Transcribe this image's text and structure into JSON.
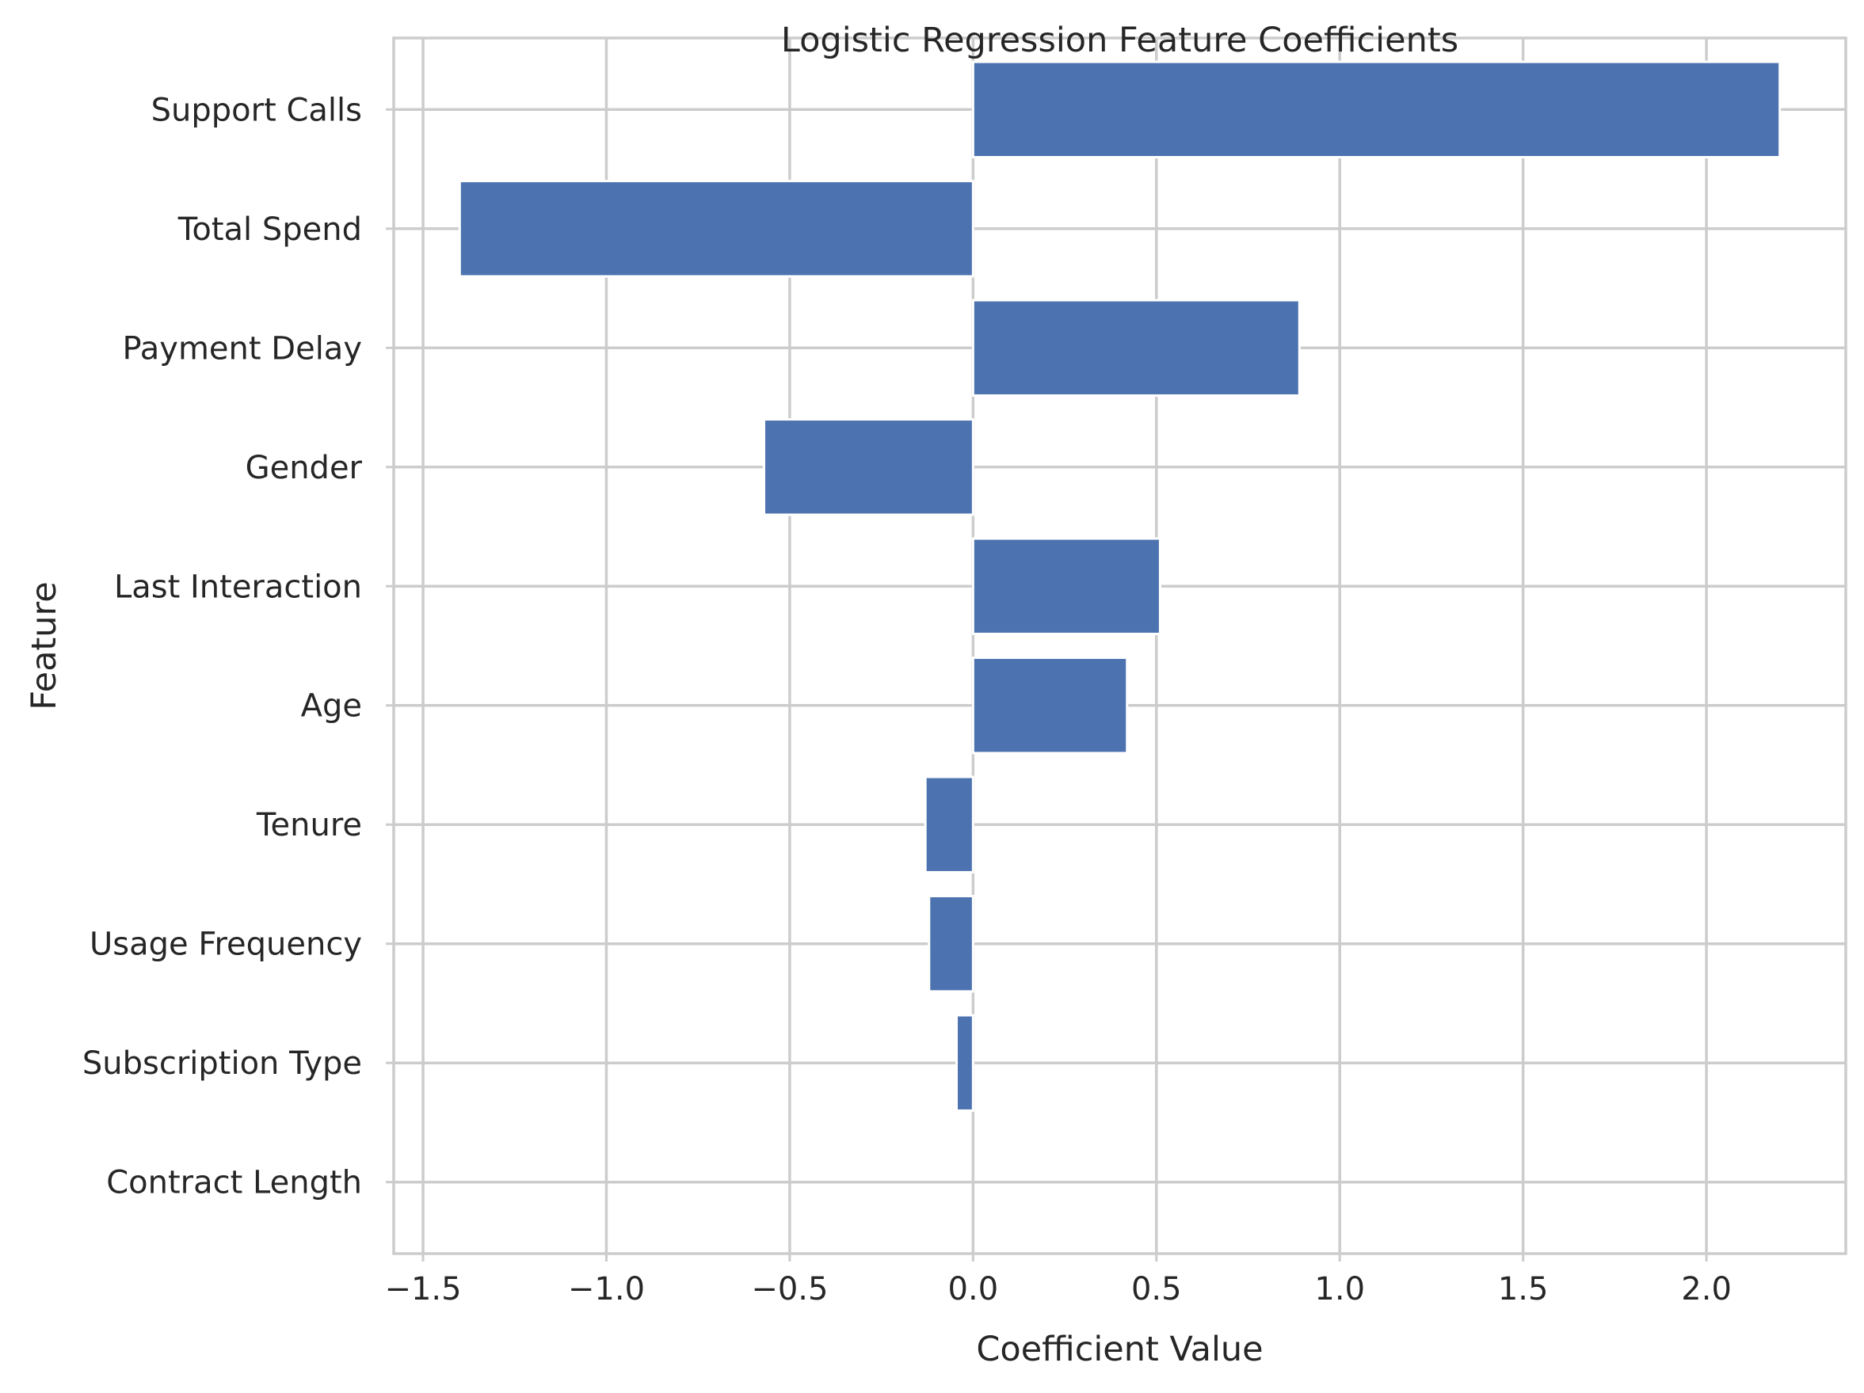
{
  "colors": {
    "background": "#ffffff",
    "bar": "#4c72b0",
    "grid": "#cccccc",
    "spine": "#cccccc",
    "text": "#262626"
  },
  "chart_data": {
    "type": "bar",
    "orientation": "horizontal",
    "title": "Logistic Regression Feature Coefficients",
    "xlabel": "Coefficient Value",
    "ylabel": "Feature",
    "xlim": [
      -1.58,
      2.38
    ],
    "xticks": [
      -1.5,
      -1.0,
      -0.5,
      0.0,
      0.5,
      1.0,
      1.5,
      2.0
    ],
    "xtick_labels": [
      "−1.5",
      "−1.0",
      "−0.5",
      "0.0",
      "0.5",
      "1.0",
      "1.5",
      "2.0"
    ],
    "grid": true,
    "categories": [
      "Support Calls",
      "Total Spend",
      "Payment Delay",
      "Gender",
      "Last Interaction",
      "Age",
      "Tenure",
      "Usage Frequency",
      "Subscription Type",
      "Contract Length"
    ],
    "values": [
      2.2,
      -1.4,
      0.89,
      -0.57,
      0.51,
      0.42,
      -0.13,
      -0.12,
      -0.045,
      0.0
    ]
  }
}
